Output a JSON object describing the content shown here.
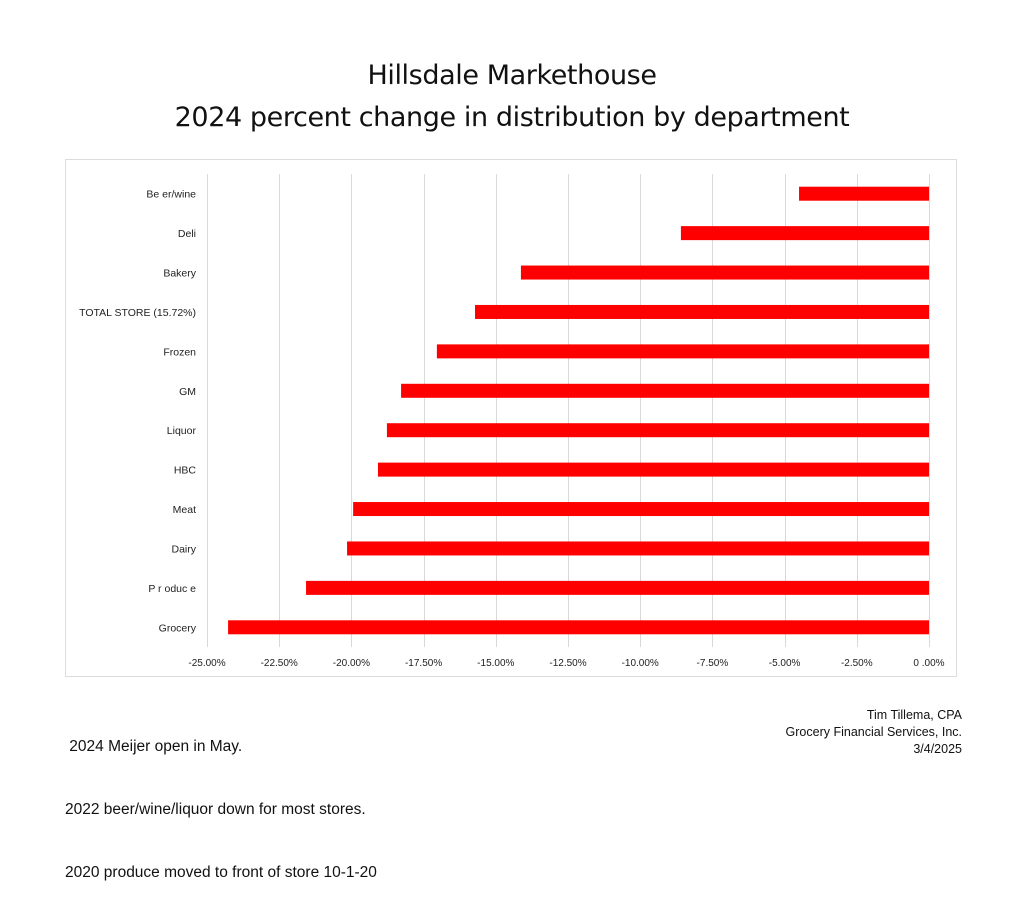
{
  "header": {
    "title_line_1": "Hillsdale Markethouse",
    "title_line_2": "2024 percent change in distribution by department"
  },
  "chart_data": {
    "type": "bar",
    "orientation": "horizontal",
    "title": "Hillsdale Markethouse — 2024 percent change in distribution by department",
    "xlabel": "",
    "ylabel": "",
    "categories": [
      "Be er/wine",
      "Deli",
      "Bakery",
      "TOTAL STORE (15.72%)",
      "Frozen",
      "GM",
      "Liquor",
      "HBC",
      "Meat",
      "Dairy",
      "P r oduc e",
      "Grocery"
    ],
    "values": [
      -4.5,
      -8.59,
      -14.13,
      -15.72,
      -17.04,
      -18.28,
      -18.77,
      -19.08,
      -19.94,
      -20.15,
      -21.57,
      -24.27
    ],
    "value_unit": "%",
    "xlim": [
      -25.0,
      0.0
    ],
    "x_ticks": [
      -25.0,
      -22.5,
      -20.0,
      -17.5,
      -15.0,
      -12.5,
      -10.0,
      -7.5,
      -5.0,
      -2.5,
      0.0
    ],
    "x_tick_labels": [
      "-25.00%",
      "-22.50%",
      "-20.00%",
      "-17.50%",
      "-15.00%",
      "-12.50%",
      "-10.00%",
      "-7.50%",
      "-5.00%",
      "-2.50%",
      "0 .00%"
    ],
    "grid": "vertical",
    "legend": "none",
    "bar_color": "#ff0000",
    "gridline_color": "#d9d9d9"
  },
  "footer": {
    "notes": [
      " 2024 Meijer open in May.",
      "2022 beer/wine/liquor down for most stores.",
      "2020 produce moved to front of store 10-1-20"
    ],
    "credit": [
      "Tim Tillema, CPA",
      "Grocery Financial Services, Inc.",
      "3/4/2025"
    ]
  }
}
